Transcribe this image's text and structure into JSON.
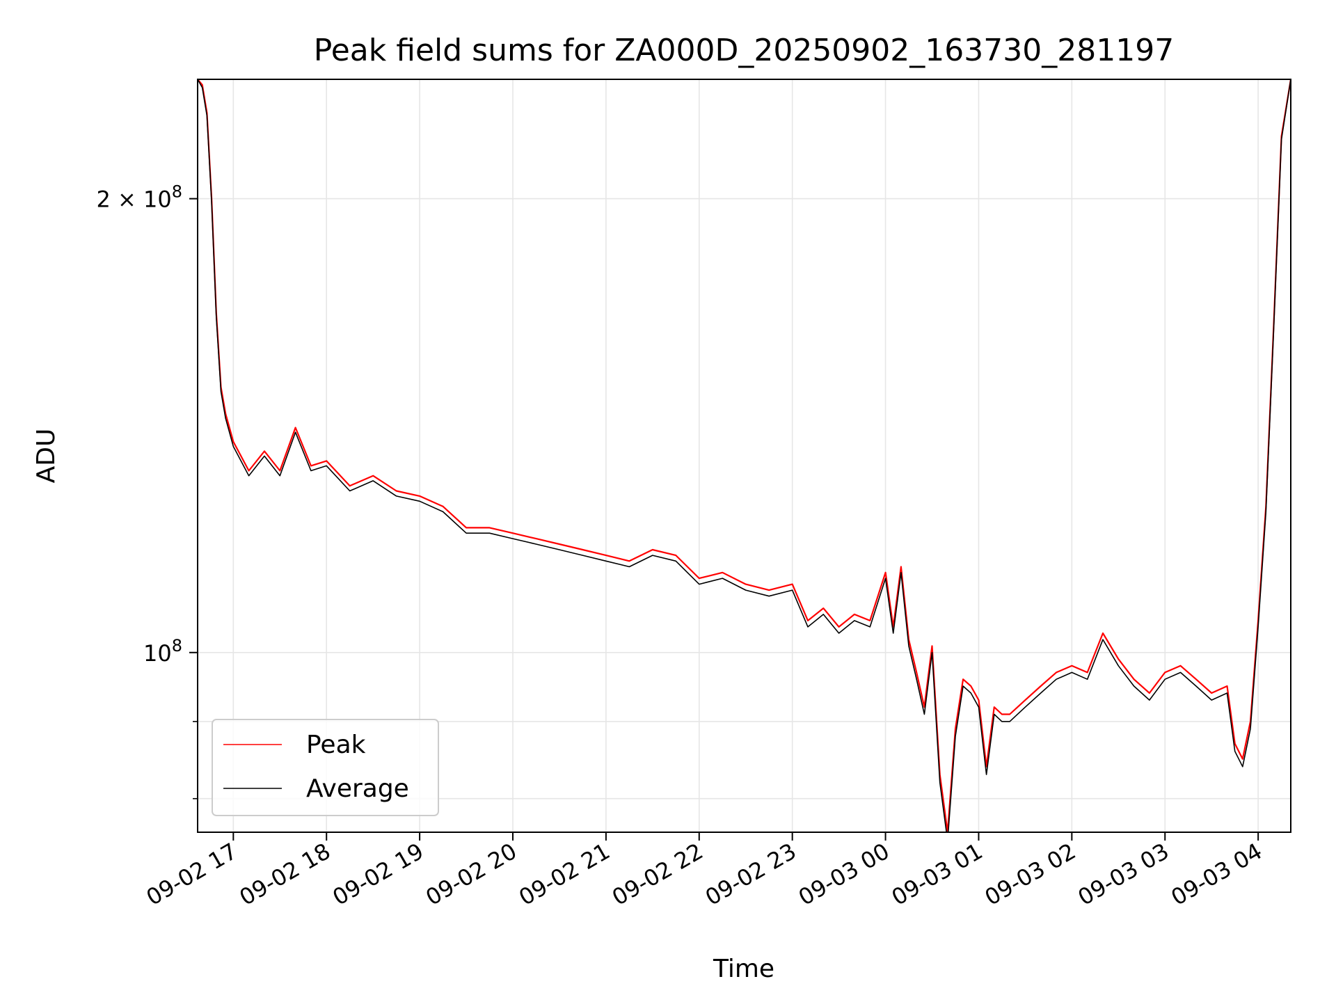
{
  "chart_data": {
    "type": "line",
    "title": "Peak field sums for ZA000D_20250902_163730_281197",
    "xlabel": "Time",
    "ylabel": "ADU",
    "y_scale": "log",
    "grid": true,
    "legend_placement": "lower-left",
    "x_range": [
      "2025-09-02 16:37",
      "2025-09-03 04:21"
    ],
    "ylim": [
      76000000,
      240000000
    ],
    "x_ticks": [
      {
        "value": "2025-09-02 17:00",
        "label": "09-02 17"
      },
      {
        "value": "2025-09-02 18:00",
        "label": "09-02 18"
      },
      {
        "value": "2025-09-02 19:00",
        "label": "09-02 19"
      },
      {
        "value": "2025-09-02 20:00",
        "label": "09-02 20"
      },
      {
        "value": "2025-09-02 21:00",
        "label": "09-02 21"
      },
      {
        "value": "2025-09-02 22:00",
        "label": "09-02 22"
      },
      {
        "value": "2025-09-02 23:00",
        "label": "09-02 23"
      },
      {
        "value": "2025-09-03 00:00",
        "label": "09-03 00"
      },
      {
        "value": "2025-09-03 01:00",
        "label": "09-03 01"
      },
      {
        "value": "2025-09-03 02:00",
        "label": "09-03 02"
      },
      {
        "value": "2025-09-03 03:00",
        "label": "09-03 03"
      },
      {
        "value": "2025-09-03 04:00",
        "label": "09-03 04"
      }
    ],
    "y_major_ticks": [
      {
        "value": 100000000,
        "label_base": "10",
        "label_exp": "8"
      },
      {
        "value": 200000000,
        "label_base": "2 × 10",
        "label_exp": "8"
      }
    ],
    "y_minor_ticks": [
      80000000,
      90000000
    ],
    "series": [
      {
        "name": "Peak",
        "color": "#ff0000",
        "x": [
          "2025-09-02 16:37",
          "2025-09-02 16:40",
          "2025-09-02 16:43",
          "2025-09-02 16:46",
          "2025-09-02 16:49",
          "2025-09-02 16:52",
          "2025-09-02 16:55",
          "2025-09-02 17:00",
          "2025-09-02 17:10",
          "2025-09-02 17:20",
          "2025-09-02 17:30",
          "2025-09-02 17:40",
          "2025-09-02 17:50",
          "2025-09-02 18:00",
          "2025-09-02 18:15",
          "2025-09-02 18:30",
          "2025-09-02 18:45",
          "2025-09-02 19:00",
          "2025-09-02 19:15",
          "2025-09-02 19:30",
          "2025-09-02 19:45",
          "2025-09-02 20:00",
          "2025-09-02 20:15",
          "2025-09-02 20:30",
          "2025-09-02 20:45",
          "2025-09-02 21:00",
          "2025-09-02 21:15",
          "2025-09-02 21:30",
          "2025-09-02 21:45",
          "2025-09-02 22:00",
          "2025-09-02 22:15",
          "2025-09-02 22:30",
          "2025-09-02 22:45",
          "2025-09-02 23:00",
          "2025-09-02 23:10",
          "2025-09-02 23:20",
          "2025-09-02 23:30",
          "2025-09-02 23:40",
          "2025-09-02 23:50",
          "2025-09-03 00:00",
          "2025-09-03 00:05",
          "2025-09-03 00:10",
          "2025-09-03 00:15",
          "2025-09-03 00:20",
          "2025-09-03 00:25",
          "2025-09-03 00:30",
          "2025-09-03 00:35",
          "2025-09-03 00:40",
          "2025-09-03 00:45",
          "2025-09-03 00:50",
          "2025-09-03 00:55",
          "2025-09-03 01:00",
          "2025-09-03 01:05",
          "2025-09-03 01:10",
          "2025-09-03 01:15",
          "2025-09-03 01:20",
          "2025-09-03 01:30",
          "2025-09-03 01:40",
          "2025-09-03 01:50",
          "2025-09-03 02:00",
          "2025-09-03 02:10",
          "2025-09-03 02:20",
          "2025-09-03 02:30",
          "2025-09-03 02:40",
          "2025-09-03 02:50",
          "2025-09-03 03:00",
          "2025-09-03 03:10",
          "2025-09-03 03:20",
          "2025-09-03 03:30",
          "2025-09-03 03:40",
          "2025-09-03 03:45",
          "2025-09-03 03:50",
          "2025-09-03 03:55",
          "2025-09-03 04:00",
          "2025-09-03 04:05",
          "2025-09-03 04:10",
          "2025-09-03 04:15",
          "2025-09-03 04:21"
        ],
        "y": [
          240000000,
          238000000,
          228000000,
          200000000,
          168000000,
          150000000,
          144000000,
          138000000,
          132000000,
          136000000,
          132000000,
          141000000,
          133000000,
          134000000,
          129000000,
          131000000,
          128000000,
          127000000,
          125000000,
          121000000,
          121000000,
          120000000,
          119000000,
          118000000,
          117000000,
          116000000,
          115000000,
          117000000,
          116000000,
          112000000,
          113000000,
          111000000,
          110000000,
          111000000,
          105000000,
          107000000,
          104000000,
          106000000,
          105000000,
          113000000,
          104000000,
          114000000,
          102000000,
          97000000,
          92000000,
          101000000,
          83000000,
          76000000,
          89000000,
          96000000,
          95000000,
          93000000,
          84000000,
          92000000,
          91000000,
          91000000,
          93000000,
          95000000,
          97000000,
          98000000,
          97000000,
          103000000,
          99000000,
          96000000,
          94000000,
          97000000,
          98000000,
          96000000,
          94000000,
          95000000,
          87000000,
          85000000,
          90000000,
          105000000,
          125000000,
          165000000,
          220000000,
          240000000
        ]
      },
      {
        "name": "Average",
        "color": "#000000",
        "x": [
          "2025-09-02 16:37",
          "2025-09-02 16:40",
          "2025-09-02 16:43",
          "2025-09-02 16:46",
          "2025-09-02 16:49",
          "2025-09-02 16:52",
          "2025-09-02 16:55",
          "2025-09-02 17:00",
          "2025-09-02 17:10",
          "2025-09-02 17:20",
          "2025-09-02 17:30",
          "2025-09-02 17:40",
          "2025-09-02 17:50",
          "2025-09-02 18:00",
          "2025-09-02 18:15",
          "2025-09-02 18:30",
          "2025-09-02 18:45",
          "2025-09-02 19:00",
          "2025-09-02 19:15",
          "2025-09-02 19:30",
          "2025-09-02 19:45",
          "2025-09-02 20:00",
          "2025-09-02 20:15",
          "2025-09-02 20:30",
          "2025-09-02 20:45",
          "2025-09-02 21:00",
          "2025-09-02 21:15",
          "2025-09-02 21:30",
          "2025-09-02 21:45",
          "2025-09-02 22:00",
          "2025-09-02 22:15",
          "2025-09-02 22:30",
          "2025-09-02 22:45",
          "2025-09-02 23:00",
          "2025-09-02 23:10",
          "2025-09-02 23:20",
          "2025-09-02 23:30",
          "2025-09-02 23:40",
          "2025-09-02 23:50",
          "2025-09-03 00:00",
          "2025-09-03 00:05",
          "2025-09-03 00:10",
          "2025-09-03 00:15",
          "2025-09-03 00:20",
          "2025-09-03 00:25",
          "2025-09-03 00:30",
          "2025-09-03 00:35",
          "2025-09-03 00:40",
          "2025-09-03 00:45",
          "2025-09-03 00:50",
          "2025-09-03 00:55",
          "2025-09-03 01:00",
          "2025-09-03 01:05",
          "2025-09-03 01:10",
          "2025-09-03 01:15",
          "2025-09-03 01:20",
          "2025-09-03 01:30",
          "2025-09-03 01:40",
          "2025-09-03 01:50",
          "2025-09-03 02:00",
          "2025-09-03 02:10",
          "2025-09-03 02:20",
          "2025-09-03 02:30",
          "2025-09-03 02:40",
          "2025-09-03 02:50",
          "2025-09-03 03:00",
          "2025-09-03 03:10",
          "2025-09-03 03:20",
          "2025-09-03 03:30",
          "2025-09-03 03:40",
          "2025-09-03 03:45",
          "2025-09-03 03:50",
          "2025-09-03 03:55",
          "2025-09-03 04:00",
          "2025-09-03 04:05",
          "2025-09-03 04:10",
          "2025-09-03 04:15",
          "2025-09-03 04:21"
        ],
        "y": [
          240000000,
          237000000,
          227000000,
          199000000,
          167000000,
          149000000,
          143000000,
          137000000,
          131000000,
          135000000,
          131000000,
          140000000,
          132000000,
          133000000,
          128000000,
          130000000,
          127000000,
          126000000,
          124000000,
          120000000,
          120000000,
          119000000,
          118000000,
          117000000,
          116000000,
          115000000,
          114000000,
          116000000,
          115000000,
          111000000,
          112000000,
          110000000,
          109000000,
          110000000,
          104000000,
          106000000,
          103000000,
          105000000,
          104000000,
          112000000,
          103000000,
          113000000,
          101000000,
          96000000,
          91000000,
          100000000,
          82000000,
          75000000,
          88000000,
          95000000,
          94000000,
          92000000,
          83000000,
          91000000,
          90000000,
          90000000,
          92000000,
          94000000,
          96000000,
          97000000,
          96000000,
          102000000,
          98000000,
          95000000,
          93000000,
          96000000,
          97000000,
          95000000,
          93000000,
          94000000,
          86000000,
          84000000,
          89000000,
          104000000,
          124000000,
          164000000,
          219000000,
          240000000
        ]
      }
    ]
  }
}
